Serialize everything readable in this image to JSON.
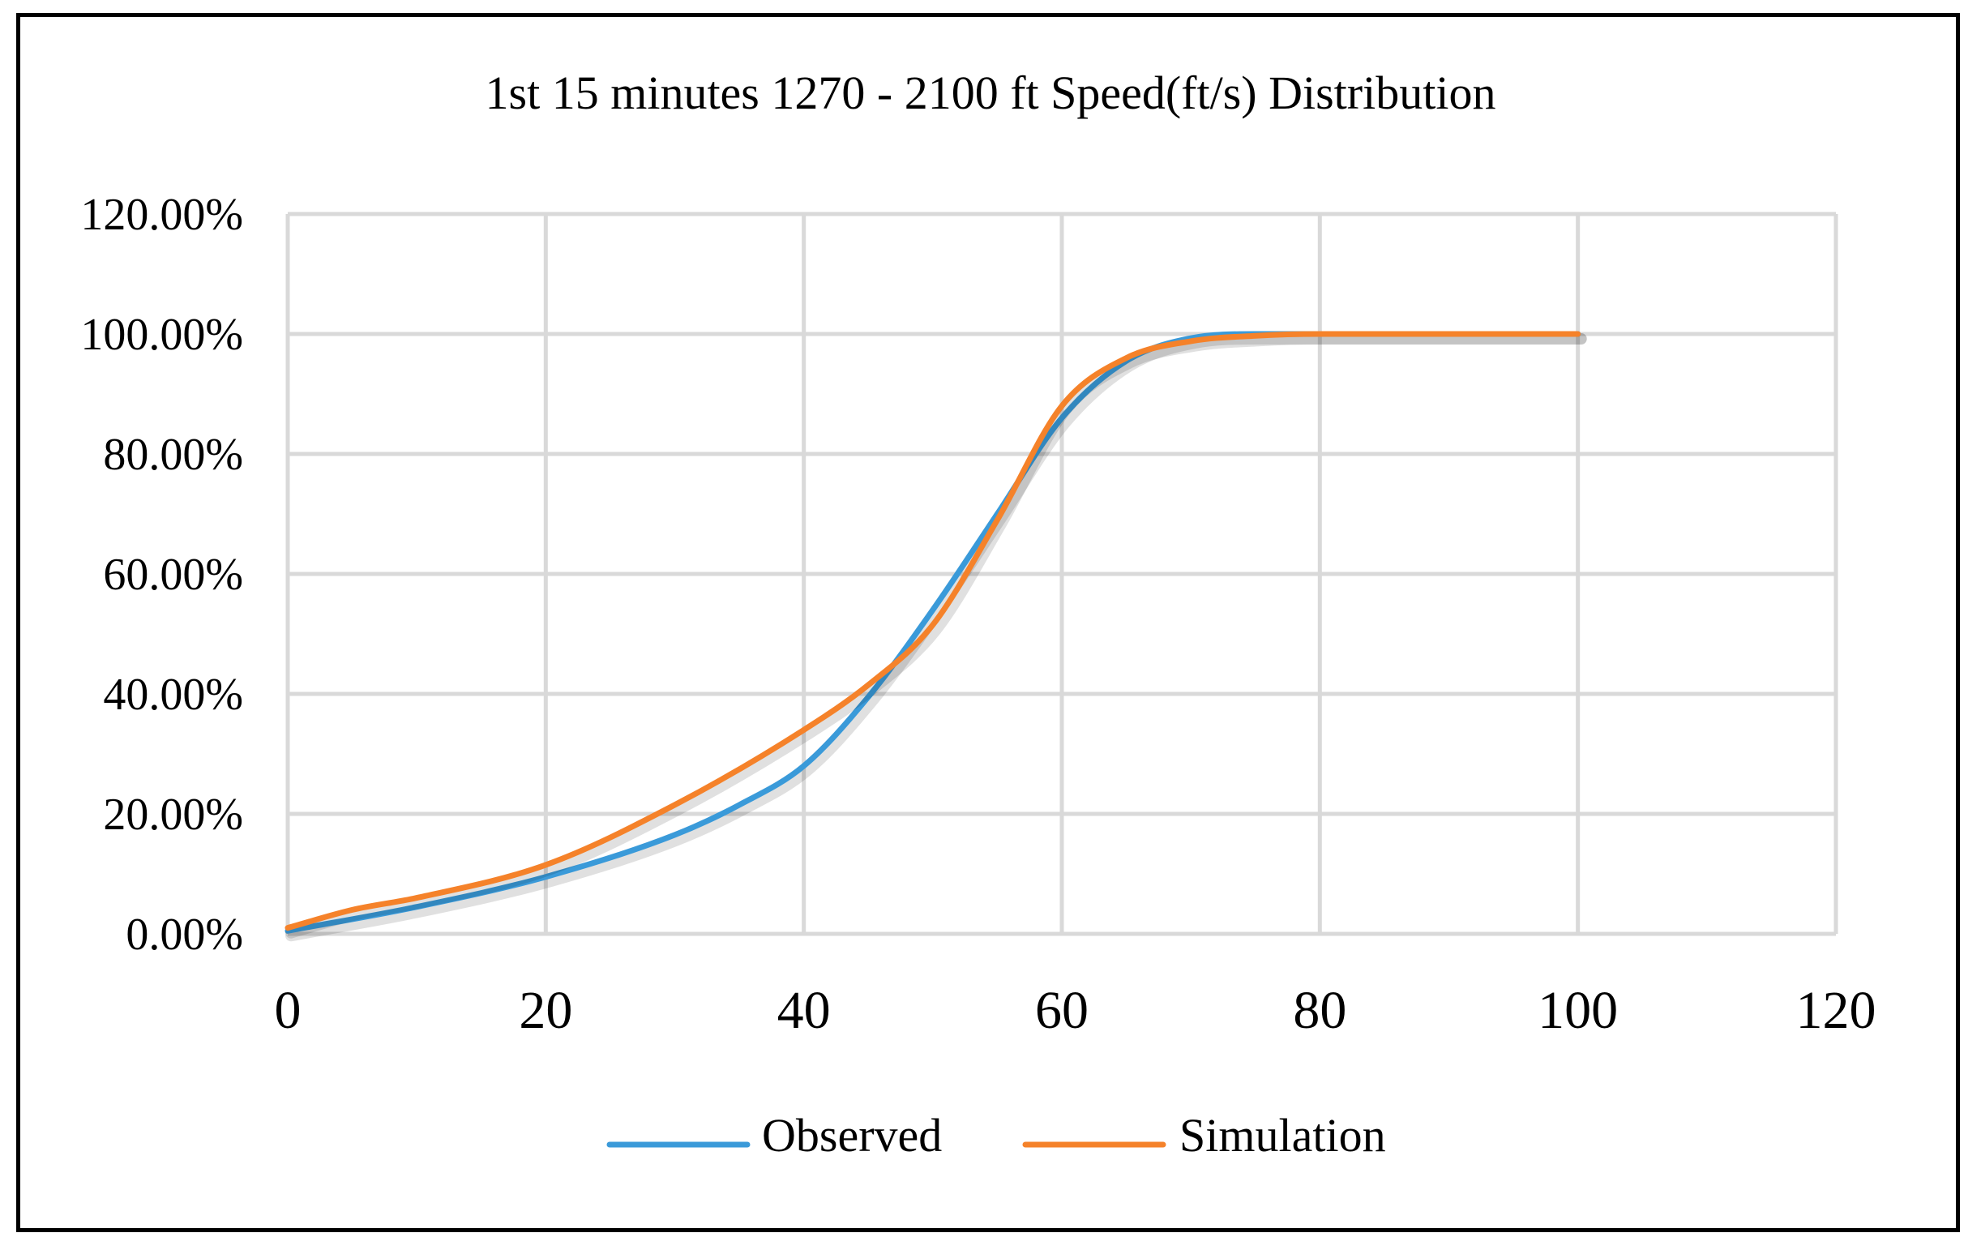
{
  "chart_data": {
    "type": "line",
    "title": "1st 15 minutes 1270 - 2100 ft Speed(ft/s) Distribution",
    "xlabel": "",
    "ylabel": "",
    "xlim": [
      0,
      120
    ],
    "ylim": [
      0,
      1.2
    ],
    "x_ticks": [
      0,
      20,
      40,
      60,
      80,
      100,
      120
    ],
    "x_tick_labels": [
      "0",
      "20",
      "40",
      "60",
      "80",
      "100",
      "120"
    ],
    "y_ticks": [
      0,
      0.2,
      0.4,
      0.6,
      0.8,
      1.0,
      1.2
    ],
    "y_tick_labels": [
      "0.00%",
      "20.00%",
      "40.00%",
      "60.00%",
      "80.00%",
      "100.00%",
      "120.00%"
    ],
    "grid": true,
    "legend_position": "bottom",
    "series": [
      {
        "name": "Observed",
        "color": "#3a9ad9",
        "x": [
          0,
          10,
          20,
          30,
          35,
          40,
          45,
          50,
          55,
          60,
          65,
          70,
          75,
          80,
          90,
          100
        ],
        "y": [
          0.005,
          0.045,
          0.095,
          0.165,
          0.215,
          0.28,
          0.395,
          0.54,
          0.7,
          0.86,
          0.955,
          0.993,
          1.0,
          1.0,
          1.0,
          1.0
        ]
      },
      {
        "name": "Simulation",
        "color": "#f5822a",
        "x": [
          0,
          5,
          10,
          20,
          30,
          40,
          45,
          50,
          55,
          60,
          65,
          70,
          75,
          80,
          90,
          100
        ],
        "y": [
          0.01,
          0.04,
          0.06,
          0.115,
          0.215,
          0.34,
          0.415,
          0.515,
          0.69,
          0.88,
          0.96,
          0.988,
          0.997,
          1.0,
          1.0,
          1.0
        ]
      }
    ]
  }
}
